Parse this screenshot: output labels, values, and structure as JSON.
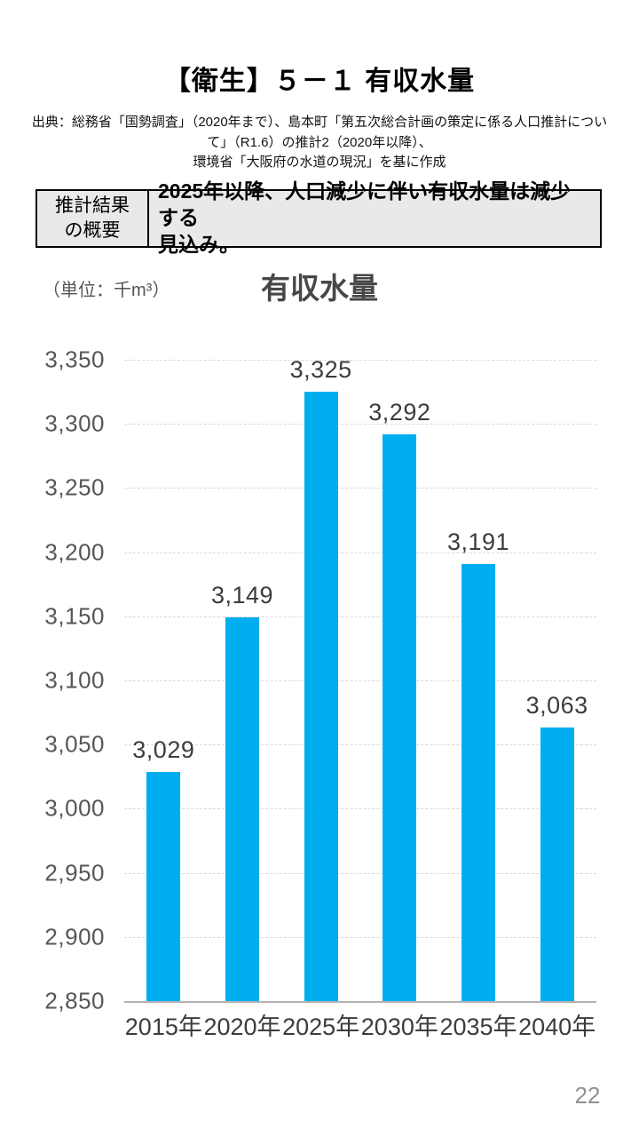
{
  "page": {
    "title": "【衛生】５－１ 有収水量",
    "page_number": "22"
  },
  "source_note": "出典：総務省「国勢調査」（2020年まで）、島本町「第五次総合計画の策定に係る人口推計につい\nて」（R1.6）の推計2（2020年以降）、\n環境省「大阪府の水道の現況」を基に作成",
  "summary_table": {
    "header": "推計結果\nの概要",
    "body": "2025年以降、人口減少に伴い有収水量は減少する\n見込み。"
  },
  "chart_data": {
    "type": "bar",
    "title": "有収水量",
    "unit_label": "（単位：千m³）",
    "categories": [
      "2015年",
      "2020年",
      "2025年",
      "2030年",
      "2035年",
      "2040年"
    ],
    "values": [
      3029,
      3149,
      3325,
      3292,
      3191,
      3063
    ],
    "value_labels": [
      "3,029",
      "3,149",
      "3,325",
      "3,292",
      "3,191",
      "3,063"
    ],
    "ylim": [
      2850,
      3350
    ],
    "ytick_step": 50,
    "ytick_labels": [
      "2,850",
      "2,900",
      "2,950",
      "3,000",
      "3,050",
      "3,100",
      "3,150",
      "3,200",
      "3,250",
      "3,300",
      "3,350"
    ],
    "bar_color": "#00AEEF",
    "grid": true,
    "legend_position": "none",
    "xlabel": "",
    "ylabel": ""
  }
}
